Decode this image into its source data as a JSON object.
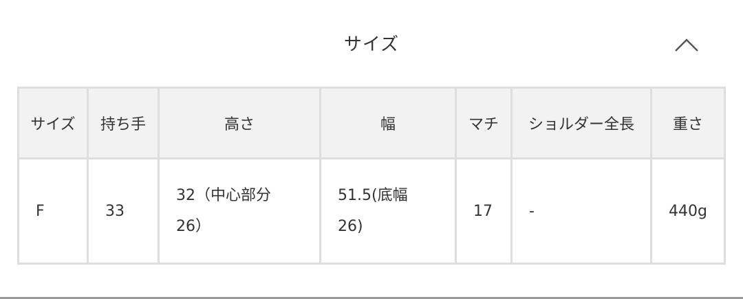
{
  "section": {
    "title": "サイズ",
    "toggle_icon": "chevron-up-icon"
  },
  "table": {
    "headers": [
      "サイズ",
      "持ち手",
      "高さ",
      "幅",
      "マチ",
      "ショルダー全長",
      "重さ"
    ],
    "rows": [
      [
        "F",
        "33",
        "32（中心部分26）",
        "51.5(底幅26)",
        "17",
        "-",
        "440g"
      ]
    ]
  },
  "colors": {
    "border": "#dedede",
    "header_bg": "#f2f2f2",
    "text": "#333333"
  }
}
